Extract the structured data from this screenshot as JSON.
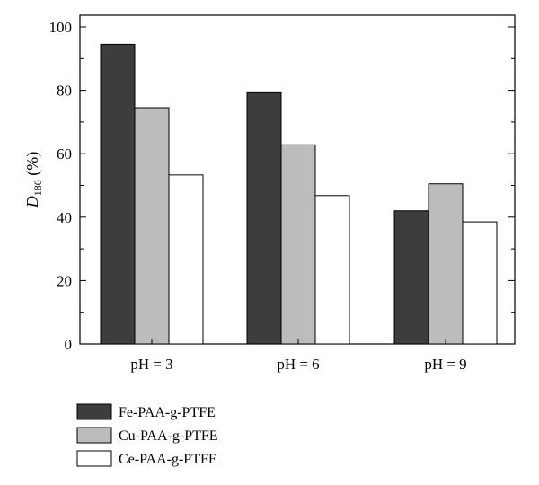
{
  "chart_data": {
    "type": "bar",
    "categories": [
      "pH = 3",
      "pH = 6",
      "pH = 9"
    ],
    "series": [
      {
        "name": "Fe-PAA-g-PTFE",
        "values": [
          94.5,
          79.5,
          42
        ],
        "color": "#3d3d3d"
      },
      {
        "name": "Cu-PAA-g-PTFE",
        "values": [
          74.5,
          62.8,
          50.5
        ],
        "color": "#bcbcbc"
      },
      {
        "name": "Ce-PAA-g-PTFE",
        "values": [
          53.3,
          46.8,
          38.5
        ],
        "color": "#ffffff"
      }
    ],
    "ylabel": {
      "main": "D",
      "sub": "180",
      "rest": " (%)"
    },
    "ylim": [
      0,
      100
    ],
    "yticks": [
      "0",
      "20",
      "40",
      "60",
      "80",
      "100"
    ],
    "legend_position": "bottom-left",
    "grid": false
  }
}
